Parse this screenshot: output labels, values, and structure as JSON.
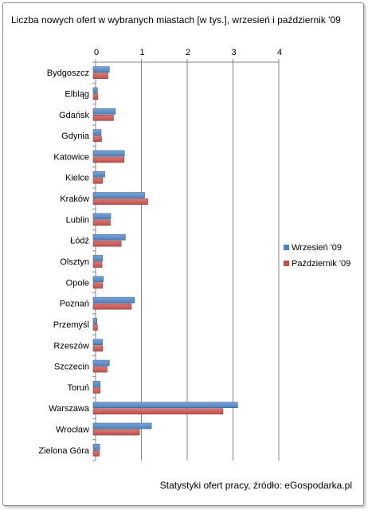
{
  "title": "Liczba nowych ofert w wybranych miastach [w tys.], wrzesień i październik '09",
  "source": "Statystyki ofert pracy, źródło: eGospodarka.pl",
  "colors": {
    "series1": "#4f81bd",
    "series2": "#c0504d",
    "axis": "#868686"
  },
  "chart_data": {
    "type": "bar",
    "orientation": "horizontal",
    "title": "Liczba nowych ofert w wybranych miastach [w tys.], wrzesień i październik '09",
    "categories": [
      "Bydgoszcz",
      "Elbląg",
      "Gdańsk",
      "Gdynia",
      "Katowice",
      "Kielce",
      "Kraków",
      "Lublin",
      "Łódź",
      "Olsztyn",
      "Opole",
      "Poznań",
      "Przemyśl",
      "Rzeszów",
      "Szczecin",
      "Toruń",
      "Warszawa",
      "Wrocław",
      "Zielona Góra"
    ],
    "series": [
      {
        "name": "Wrzesień '09",
        "values": [
          0.3,
          0.04,
          0.43,
          0.12,
          0.63,
          0.2,
          1.07,
          0.33,
          0.65,
          0.15,
          0.17,
          0.85,
          0.03,
          0.15,
          0.3,
          0.1,
          3.1,
          1.22,
          0.09
        ]
      },
      {
        "name": "Październik '09",
        "values": [
          0.27,
          0.05,
          0.39,
          0.13,
          0.62,
          0.15,
          1.14,
          0.32,
          0.56,
          0.14,
          0.15,
          0.78,
          0.04,
          0.15,
          0.25,
          0.1,
          2.78,
          0.96,
          0.08
        ]
      }
    ],
    "xlim": [
      0,
      4
    ],
    "xticks": [
      "0",
      "1",
      "2",
      "3",
      "4"
    ],
    "grid": true,
    "legend": "right"
  }
}
